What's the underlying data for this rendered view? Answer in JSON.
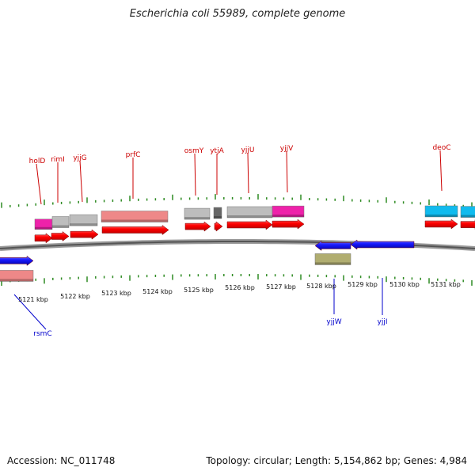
{
  "title": "Escherichia coli 55989, complete genome",
  "footer": {
    "accession": "Accession: NC_011748",
    "summary": "Topology: circular; Length: 5,154,862 bp; Genes: 4,984"
  },
  "colors": {
    "forward_cds": "#ff0000",
    "reverse_cds": "#1a1aff",
    "gene_gray": "#bdbdbd",
    "gene_pink": "#ee8888",
    "gene_magenta": "#ee22aa",
    "gene_cyan": "#11bbee",
    "gene_olive": "#b0ad70",
    "gene_dark": "#666666",
    "tick": "#2e8b22",
    "label_top": "#cc0000",
    "label_bottom": "#0000cc"
  },
  "scale": {
    "labels": [
      "5121 kbp",
      "5122 kbp",
      "5123 kbp",
      "5124 kbp",
      "5125 kbp",
      "5126 kbp",
      "5127 kbp",
      "5128 kbp",
      "5129 kbp",
      "5130 kbp",
      "5131 kbp"
    ]
  },
  "top_labels": [
    "holD",
    "rimI",
    "yjjG",
    "prfC",
    "osmY",
    "ytjA",
    "yjjU",
    "yjjV",
    "deoC"
  ],
  "bottom_labels": [
    "rsmC",
    "yjjW",
    "yjjI"
  ]
}
